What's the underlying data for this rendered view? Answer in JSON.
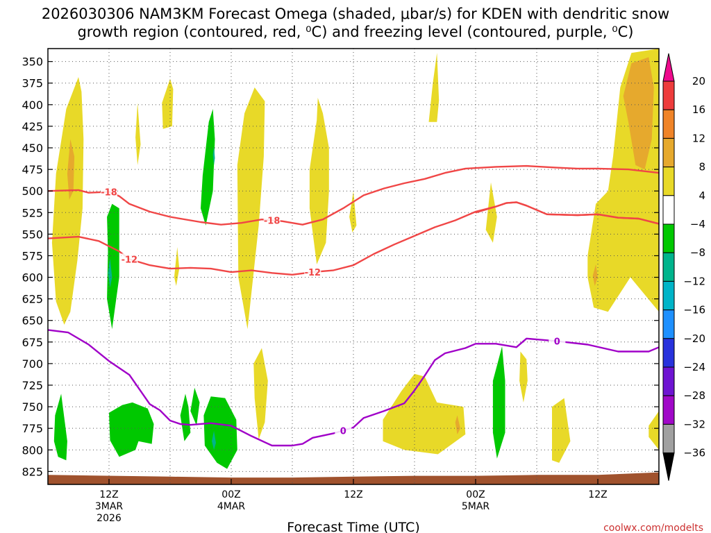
{
  "chart_data": {
    "type": "time-height cross-section",
    "title_line1": "2026030306 NAM3KM Forecast Omega (shaded, μbar/s) for KDEN with dendritic snow",
    "title_line2": "growth region (contoured, red, ⁰C) and freezing level (contoured, purple, ⁰C)",
    "xlabel": "Forecast Time (UTC)",
    "credit": "coolwx.com/modelts",
    "y_axis": {
      "quantity": "pressure (mb)",
      "ticks": [
        350,
        375,
        400,
        425,
        450,
        475,
        500,
        525,
        550,
        575,
        600,
        625,
        650,
        675,
        700,
        725,
        750,
        775,
        800,
        825
      ],
      "range": [
        335,
        840
      ]
    },
    "x_axis": {
      "unit": "forecast hour (from 2026-03-03 06Z)",
      "range": [
        0,
        60
      ],
      "ticks": [
        {
          "hour": 6,
          "lines": [
            "12Z",
            "3MAR",
            "2026"
          ]
        },
        {
          "hour": 18,
          "lines": [
            "00Z",
            "4MAR"
          ]
        },
        {
          "hour": 30,
          "lines": [
            "12Z"
          ]
        },
        {
          "hour": 42,
          "lines": [
            "00Z",
            "5MAR"
          ]
        },
        {
          "hour": 54,
          "lines": [
            "12Z"
          ]
        }
      ],
      "gridlines_at_hours": [
        6,
        12,
        18,
        24,
        30,
        36,
        42,
        48,
        54
      ]
    },
    "grid": true,
    "colorbar": {
      "labels": [
        "20",
        "16",
        "12",
        "8",
        "4",
        "−4",
        "−8",
        "−12",
        "−16",
        "−20",
        "−24",
        "−28",
        "−32",
        "−36"
      ],
      "bands": [
        {
          "range": "> 20",
          "color": "#ee0a8c"
        },
        {
          "range": "16 to 20",
          "color": "#ee3c3c"
        },
        {
          "range": "12 to 16",
          "color": "#f08428"
        },
        {
          "range": "8 to 12",
          "color": "#e6a92d"
        },
        {
          "range": "4 to 8",
          "color": "#e8d928"
        },
        {
          "range": "-4 to 4",
          "color": "#ffffff"
        },
        {
          "range": "-8 to -4",
          "color": "#00c800"
        },
        {
          "range": "-12 to -8",
          "color": "#00b48c"
        },
        {
          "range": "-16 to -12",
          "color": "#00b4c8"
        },
        {
          "range": "-20 to -16",
          "color": "#1e90ff"
        },
        {
          "range": "-24 to -20",
          "color": "#2832dc"
        },
        {
          "range": "-28 to -24",
          "color": "#6e14d2"
        },
        {
          "range": "-32 to -28",
          "color": "#a008c8"
        },
        {
          "range": "-36 to -32",
          "color": "#a0a0a0"
        },
        {
          "range": "< -36",
          "color": "#000000"
        }
      ]
    },
    "contours": [
      {
        "label": "-18",
        "color": "#f04646",
        "points": [
          [
            0,
            500
          ],
          [
            3,
            499
          ],
          [
            4,
            502
          ],
          [
            6,
            501
          ],
          [
            7,
            506
          ],
          [
            8,
            515
          ],
          [
            10,
            524
          ],
          [
            12,
            530
          ],
          [
            15,
            536
          ],
          [
            17,
            539
          ],
          [
            19,
            537
          ],
          [
            21,
            533
          ],
          [
            23,
            535
          ],
          [
            25,
            539
          ],
          [
            27,
            533
          ],
          [
            29,
            520
          ],
          [
            31,
            505
          ],
          [
            33,
            497
          ],
          [
            35,
            491
          ],
          [
            37,
            486
          ],
          [
            39,
            479
          ],
          [
            41,
            474
          ],
          [
            44,
            472
          ],
          [
            47,
            471
          ],
          [
            50,
            473
          ],
          [
            52,
            474
          ],
          [
            54,
            474
          ],
          [
            57,
            475
          ],
          [
            60,
            479
          ]
        ],
        "label_hours": [
          6,
          22
        ]
      },
      {
        "label": "-18",
        "color": "#f04646",
        "points": [
          [
            42,
            525
          ],
          [
            44,
            518
          ],
          [
            45,
            514
          ],
          [
            46,
            513
          ],
          [
            47,
            517
          ],
          [
            49,
            527
          ],
          [
            52,
            528
          ],
          [
            54,
            527
          ],
          [
            56,
            531
          ],
          [
            58,
            532
          ],
          [
            60,
            538
          ]
        ],
        "label_hours": []
      },
      {
        "label": "-12",
        "color": "#f04646",
        "points": [
          [
            0,
            555
          ],
          [
            3,
            553
          ],
          [
            5,
            558
          ],
          [
            7,
            570
          ],
          [
            8,
            579
          ],
          [
            10,
            586
          ],
          [
            12,
            590
          ],
          [
            14,
            589
          ],
          [
            16,
            590
          ],
          [
            18,
            594
          ],
          [
            20,
            592
          ],
          [
            22,
            595
          ],
          [
            24,
            597
          ],
          [
            26,
            594
          ],
          [
            28,
            592
          ],
          [
            30,
            586
          ],
          [
            32,
            573
          ],
          [
            34,
            562
          ],
          [
            36,
            552
          ],
          [
            38,
            542
          ],
          [
            40,
            534
          ],
          [
            42,
            524
          ],
          [
            44,
            518
          ],
          [
            45,
            514
          ],
          [
            46,
            513
          ],
          [
            47,
            517
          ],
          [
            49,
            527
          ],
          [
            52,
            528
          ],
          [
            54,
            527
          ],
          [
            56,
            531
          ],
          [
            58,
            532
          ],
          [
            60,
            538
          ]
        ],
        "label_hours": [
          8,
          26
        ]
      },
      {
        "label": "0",
        "color": "#a000c8",
        "points": [
          [
            0,
            661
          ],
          [
            2,
            664
          ],
          [
            4,
            678
          ],
          [
            6,
            697
          ],
          [
            8,
            713
          ],
          [
            9,
            730
          ],
          [
            10,
            747
          ],
          [
            11,
            754
          ],
          [
            12,
            766
          ],
          [
            13,
            770
          ],
          [
            14,
            771
          ],
          [
            16,
            769
          ],
          [
            18,
            772
          ],
          [
            20,
            784
          ],
          [
            22,
            795
          ],
          [
            24,
            795
          ],
          [
            25,
            793
          ],
          [
            26,
            786
          ],
          [
            28,
            781
          ],
          [
            30,
            774
          ],
          [
            31,
            763
          ],
          [
            33,
            755
          ],
          [
            35,
            746
          ],
          [
            36,
            731
          ],
          [
            37,
            714
          ],
          [
            38,
            696
          ],
          [
            39,
            688
          ],
          [
            41,
            682
          ],
          [
            42,
            677
          ],
          [
            44,
            677
          ],
          [
            46,
            681
          ],
          [
            47,
            671
          ],
          [
            48,
            672
          ],
          [
            50,
            674
          ],
          [
            53,
            678
          ],
          [
            56,
            686
          ],
          [
            59,
            686
          ],
          [
            60,
            681
          ]
        ],
        "label_hours": [
          29,
          50
        ]
      }
    ],
    "shaded_regions": [
      {
        "band": "4 to 8",
        "desc": "early column"
      },
      {
        "band": "4 to 8",
        "desc": "upper plume near 12Z"
      },
      {
        "band": "4 to 8",
        "desc": "plume near 00Z 4MAR"
      },
      {
        "band": "4 to 8",
        "desc": "plume near 12Z 4MAR"
      },
      {
        "band": "4 to 8",
        "desc": "small upper plume"
      },
      {
        "band": "4 to 8",
        "desc": "plume near 00Z 5MAR"
      },
      {
        "band": "4 to 8",
        "desc": "low level cluster"
      },
      {
        "band": "4 to 8",
        "desc": "right side column"
      },
      {
        "band": "8 to 12",
        "desc": "upper right maximum"
      },
      {
        "band": "-8 to -4",
        "desc": "sinking near 12Z 3MAR"
      },
      {
        "band": "-8 to -4",
        "desc": "sinking before 00Z 4MAR"
      },
      {
        "band": "-8 to -4",
        "desc": "low level sinking"
      }
    ]
  }
}
